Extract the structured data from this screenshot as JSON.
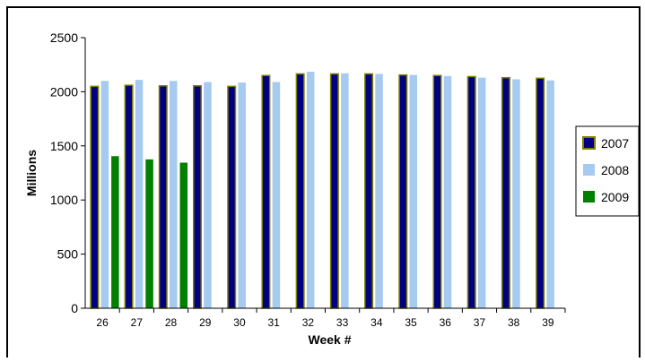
{
  "chart_data": {
    "type": "bar",
    "title": "",
    "xlabel": "Week #",
    "ylabel": "Millions",
    "ylim": [
      0,
      2500
    ],
    "yticks": [
      0,
      500,
      1000,
      1500,
      2000,
      2500
    ],
    "grid": false,
    "legend_position": "right",
    "categories": [
      "26",
      "27",
      "28",
      "29",
      "30",
      "31",
      "32",
      "33",
      "34",
      "35",
      "36",
      "37",
      "38",
      "39"
    ],
    "series": [
      {
        "name": "2007",
        "color": "#000080",
        "edge_color": "#808000",
        "values": [
          2050,
          2060,
          2055,
          2055,
          2050,
          2150,
          2165,
          2165,
          2165,
          2155,
          2150,
          2140,
          2130,
          2125
        ]
      },
      {
        "name": "2008",
        "color": "#A6CAF0",
        "values": [
          2100,
          2110,
          2100,
          2090,
          2085,
          2090,
          2185,
          2170,
          2165,
          2155,
          2145,
          2130,
          2115,
          2105
        ]
      },
      {
        "name": "2009",
        "color": "#008000",
        "values": [
          1405,
          1375,
          1345,
          null,
          null,
          null,
          null,
          null,
          null,
          null,
          null,
          null,
          null,
          null
        ]
      }
    ]
  }
}
